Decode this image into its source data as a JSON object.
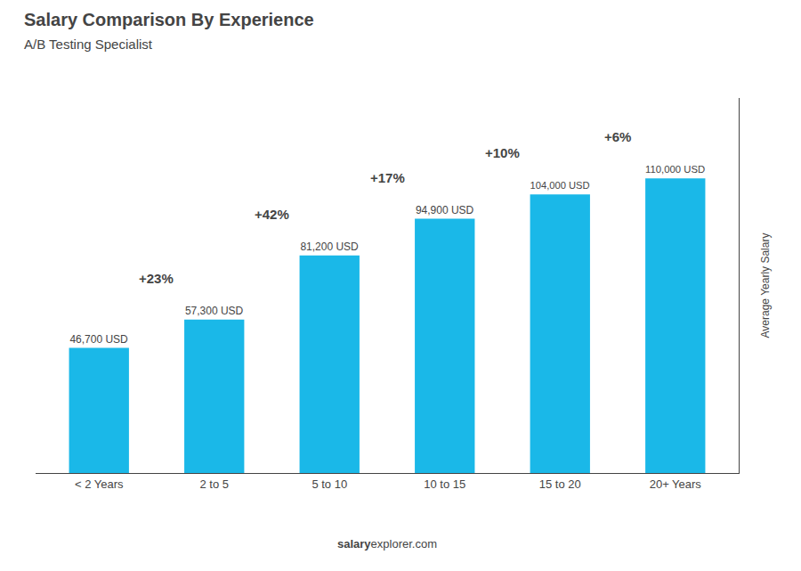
{
  "chart_data": {
    "type": "bar",
    "title": "Salary Comparison By Experience",
    "subtitle": "A/B Testing Specialist",
    "ylabel": "Average Yearly Salary",
    "categories": [
      "< 2 Years",
      "2 to 5",
      "5 to 10",
      "10 to 15",
      "15 to 20",
      "20+ Years"
    ],
    "values": [
      46700,
      57300,
      81200,
      94900,
      104000,
      110000
    ],
    "value_labels": [
      "46,700 USD",
      "57,300 USD",
      "81,200 USD",
      "94,900 USD",
      "104,000 USD",
      "110,000 USD"
    ],
    "data_labels": true,
    "pct_changes": [
      "+23%",
      "+42%",
      "+17%",
      "+10%",
      "+6%"
    ],
    "color": "#1ab8e8",
    "ylim": [
      0,
      140000
    ],
    "tick_labels": "x",
    "grid": false,
    "footer": [
      "salary",
      "explorer.com"
    ]
  }
}
